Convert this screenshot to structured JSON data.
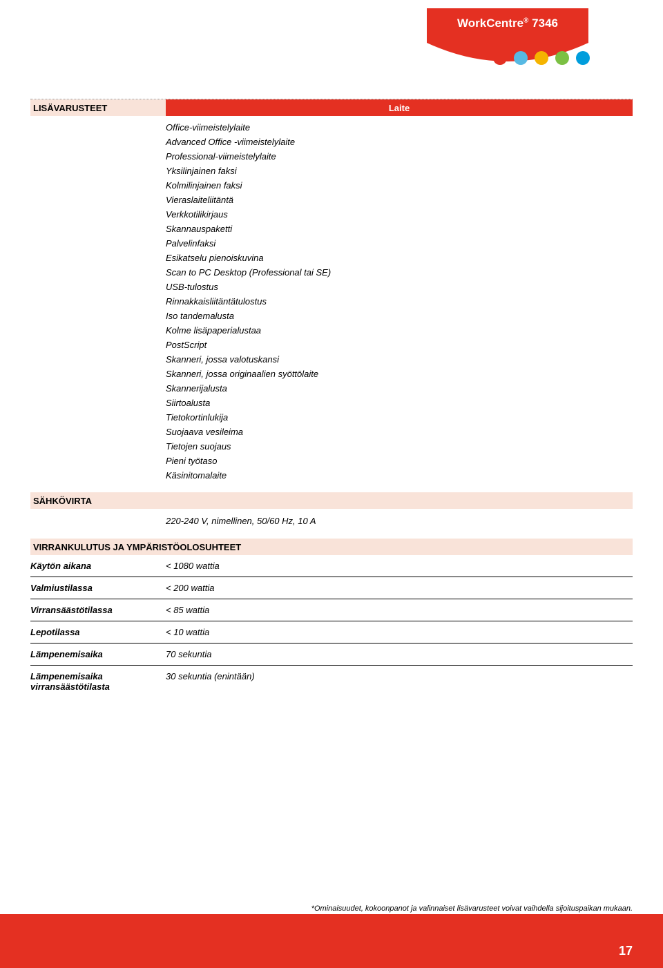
{
  "header": {
    "product": "WorkCentre",
    "model": "7346"
  },
  "dot_colors": [
    "#e43022",
    "#57b9e3",
    "#f5b400",
    "#7bc043",
    "#009ddc"
  ],
  "banner_label": "Laite",
  "sections": {
    "accessories": {
      "title": "LISÄVARUSTEET",
      "items": [
        "Office-viimeistelylaite",
        "Advanced Office -viimeistelylaite",
        "Professional-viimeistelylaite",
        "Yksilinjainen faksi",
        "Kolmilinjainen faksi",
        "Vieraslaiteliitäntä",
        "Verkkotilikirjaus",
        "Skannauspaketti",
        "Palvelinfaksi",
        "Esikatselu pienoiskuvina",
        "Scan to PC Desktop (Professional tai SE)",
        "USB-tulostus",
        "Rinnakkaisliitäntätulostus",
        "Iso tandemalusta",
        "Kolme lisäpaperialustaa",
        "PostScript",
        "Skanneri, jossa valotuskansi",
        "Skanneri, jossa originaalien syöttölaite",
        "Skannerijalusta",
        "Siirtoalusta",
        "Tietokortinlukija",
        "Suojaava vesileima",
        "Tietojen suojaus",
        "Pieni työtaso",
        "Käsinitomalaite"
      ]
    },
    "power": {
      "title": "SÄHKÖVIRTA",
      "text": "220-240 V, nimellinen, 50/60 Hz, 10 A"
    },
    "consumption": {
      "title": "VIRRANKULUTUS JA YMPÄRISTÖOLOSUHTEET",
      "rows": [
        {
          "label": "Käytön aikana",
          "value": "< 1080 wattia"
        },
        {
          "label": "Valmiustilassa",
          "value": "< 200 wattia"
        },
        {
          "label": "Virransäästötilassa",
          "value": "< 85 wattia"
        },
        {
          "label": "Lepotilassa",
          "value": "< 10 wattia"
        },
        {
          "label": "Lämpenemisaika",
          "value": "70 sekuntia"
        },
        {
          "label": "Lämpenemisaika virransäästötilasta",
          "value": "30 sekuntia (enintään)"
        }
      ]
    }
  },
  "footnote": "*Ominaisuudet, kokoonpanot ja valinnaiset lisävarusteet voivat vaihdella sijoituspaikan mukaan.",
  "page_number": "17",
  "colors": {
    "brand_red": "#e43022",
    "peach": "#f9e3d9"
  }
}
